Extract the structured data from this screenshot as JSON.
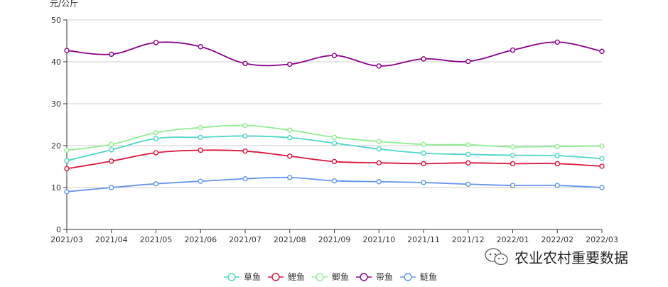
{
  "chart_data": {
    "type": "line",
    "title": "",
    "xlabel": "",
    "ylabel": "元/公斤",
    "ylim": [
      0,
      50
    ],
    "y_ticks": [
      0,
      10,
      20,
      30,
      40,
      50
    ],
    "grid": "horizontal",
    "legend_position": "bottom",
    "smooth": true,
    "categories": [
      "2021/03",
      "2021/04",
      "2021/05",
      "2021/06",
      "2021/07",
      "2021/08",
      "2021/09",
      "2021/10",
      "2021/11",
      "2021/12",
      "2022/01",
      "2022/02",
      "2022/03"
    ],
    "series": [
      {
        "name": "草鱼",
        "color": "#4dd6c9",
        "values": [
          16.4,
          19.0,
          21.7,
          22.0,
          22.3,
          21.9,
          20.6,
          19.2,
          18.2,
          17.9,
          17.7,
          17.6,
          16.9
        ]
      },
      {
        "name": "鲤鱼",
        "color": "#dc143c",
        "values": [
          14.5,
          16.3,
          18.3,
          18.9,
          18.7,
          17.5,
          16.2,
          15.9,
          15.7,
          15.9,
          15.7,
          15.7,
          15.1
        ]
      },
      {
        "name": "鲫鱼",
        "color": "#90ee90",
        "values": [
          18.9,
          20.3,
          23.1,
          24.3,
          24.8,
          23.7,
          22.0,
          21.0,
          20.3,
          20.2,
          19.7,
          19.8,
          19.9
        ]
      },
      {
        "name": "带鱼",
        "color": "#8b008b",
        "values": [
          42.7,
          41.8,
          44.6,
          43.6,
          39.6,
          39.4,
          41.5,
          39.0,
          40.7,
          40.1,
          42.8,
          44.7,
          42.5
        ]
      },
      {
        "name": "鲢鱼",
        "color": "#6495ed",
        "values": [
          9.0,
          10.0,
          10.9,
          11.5,
          12.1,
          12.4,
          11.6,
          11.4,
          11.2,
          10.8,
          10.5,
          10.5,
          10.0
        ]
      }
    ]
  },
  "watermark": {
    "icon": "wechat-icon",
    "text": "农业农村重要数据"
  }
}
